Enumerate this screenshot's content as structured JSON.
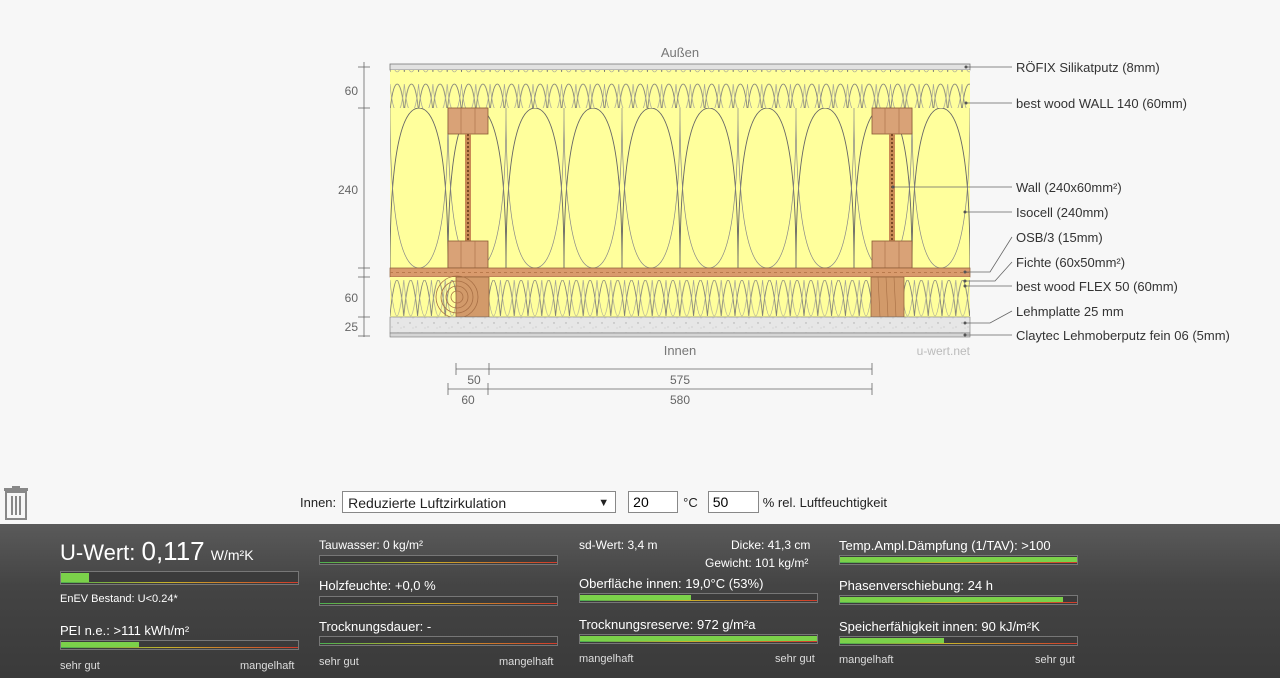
{
  "diagram": {
    "outside_label": "Außen",
    "inside_label": "Innen",
    "watermark": "u-wert.net",
    "thickness_labels": [
      "60",
      "240",
      "60",
      "25"
    ],
    "bottom_dimensions": {
      "a": "50",
      "b": "575",
      "c": "60",
      "d": "580"
    },
    "layers": [
      "RÖFIX Silikatputz (8mm)",
      "best wood WALL 140 (60mm)",
      "Wall (240x60mm²)",
      "Isocell (240mm)",
      "OSB/3 (15mm)",
      "Fichte (60x50mm²)",
      "best wood FLEX 50 (60mm)",
      "Lehmplatte 25 mm",
      "Claytec Lehmoberputz fein 06 (5mm)"
    ]
  },
  "controls": {
    "innen_label": "Innen:",
    "select_value": "Reduzierte Luftzirkulation",
    "temperature": "20",
    "temp_unit": "°C",
    "humidity": "50",
    "humidity_label": "% rel. Luftfeuchtigkeit"
  },
  "results": {
    "uwert_prefix": "U-Wert:",
    "uwert_value": "0,117",
    "uwert_unit": "W/m²K",
    "uwert_fill": 0.12,
    "enev": "EnEV Bestand: U<0.24*",
    "pei": "PEI n.e.: >111 kWh/m²",
    "pei_fill": 0.33,
    "scale_left": "sehr gut",
    "scale_right": "mangelhaft",
    "tauwasser": "Tauwasser: 0 kg/m²",
    "tauwasser_fill": 0.0,
    "holzfeuchte": "Holzfeuchte: +0,0 %",
    "holzfeuchte_fill": 0.0,
    "trocknungsdauer": "Trocknungsdauer: -",
    "trocknungsdauer_fill": 0.0,
    "sdwert": "sd-Wert: 3,4 m",
    "dicke": "Dicke: 41,3 cm",
    "gewicht": "Gewicht: 101 kg/m²",
    "oberflaeche": "Oberfläche innen: 19,0°C (53%)",
    "oberflaeche_fill": 0.47,
    "trocknungsreserve": "Trocknungsreserve: 972 g/m²a",
    "trocknungsreserve_fill": 1.0,
    "scale2_left": "mangelhaft",
    "scale2_right": "sehr gut",
    "tav": "Temp.Ampl.Dämpfung (1/TAV): >100",
    "tav_fill": 1.0,
    "phase": "Phasenverschiebung: 24 h",
    "phase_fill": 0.94,
    "speicher": "Speicherfähigkeit innen: 90 kJ/m²K",
    "speicher_fill": 0.44
  }
}
